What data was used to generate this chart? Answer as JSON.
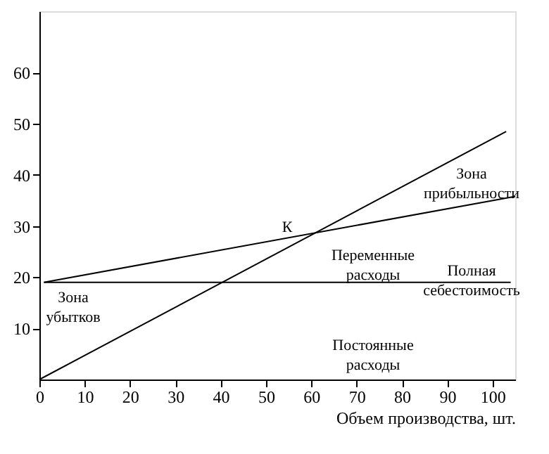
{
  "chart_data": {
    "type": "line",
    "xlabel": "Объем производства, шт.",
    "xlim": [
      0,
      105
    ],
    "ylim": [
      0,
      72
    ],
    "xticks": [
      0,
      10,
      20,
      30,
      40,
      50,
      60,
      70,
      80,
      90,
      100
    ],
    "yticks": [
      10,
      20,
      30,
      40,
      50,
      60
    ],
    "grid": false,
    "marker": "none",
    "line_style": "solid",
    "series": [
      {
        "color": "#000000",
        "x": [
          0,
          103
        ],
        "values": [
          0,
          48.5
        ]
      },
      {
        "color": "#000000",
        "x": [
          1,
          105
        ],
        "values": [
          19,
          35.8
        ]
      },
      {
        "color": "#000000",
        "x": [
          1,
          104
        ],
        "values": [
          19,
          19
        ]
      }
    ],
    "annotations": [
      "К",
      "Зона прибыльности",
      "Переменные расходы",
      "Полная себестоимость",
      "Постоянные расходы",
      "Зона убытков"
    ]
  }
}
